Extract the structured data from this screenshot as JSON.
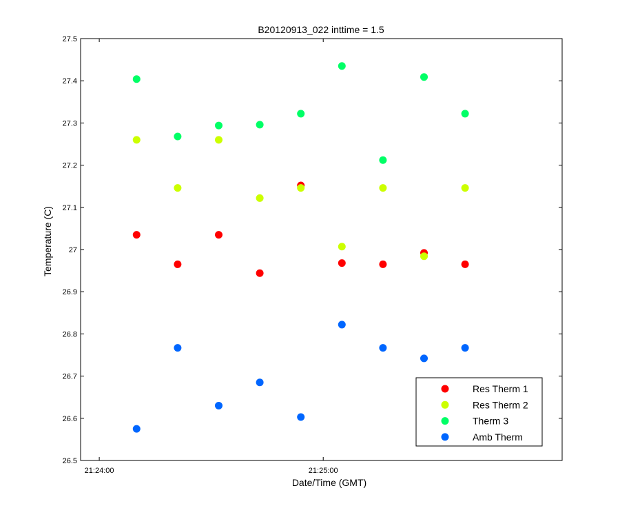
{
  "chart_data": {
    "type": "scatter",
    "title": "B20120913_022 inttime = 1.5",
    "xlabel": "Date/Time (GMT)",
    "ylabel": "Temperature (C)",
    "xlim": [
      "21:23:55",
      "21:26:04"
    ],
    "ylim": [
      26.5,
      27.5
    ],
    "x_ticks": [
      "21:24:00",
      "21:25:00"
    ],
    "y_ticks": [
      "26.5",
      "26.6",
      "26.7",
      "26.8",
      "26.9",
      "27",
      "27.1",
      "27.2",
      "27.3",
      "27.4",
      "27.5"
    ],
    "grid": false,
    "legend_position": "bottom-right",
    "x": [
      "21:24:10",
      "21:24:21",
      "21:24:32",
      "21:24:43",
      "21:24:54",
      "21:25:05",
      "21:25:16",
      "21:25:27",
      "21:25:38"
    ],
    "series": [
      {
        "name": "Res Therm 1",
        "color": "#ff0000",
        "values": [
          27.035,
          26.965,
          27.035,
          26.944,
          27.152,
          26.968,
          26.965,
          26.992,
          26.965
        ]
      },
      {
        "name": "Res Therm 2",
        "color": "#ccff00",
        "values": [
          27.26,
          27.146,
          27.26,
          27.122,
          27.146,
          27.007,
          27.146,
          26.984,
          27.146
        ]
      },
      {
        "name": "Therm 3",
        "color": "#00ff66",
        "values": [
          27.404,
          27.268,
          27.294,
          27.296,
          27.322,
          27.435,
          27.212,
          27.409,
          27.322
        ]
      },
      {
        "name": "Amb Therm",
        "color": "#0066ff",
        "values": [
          26.575,
          26.767,
          26.63,
          26.685,
          26.603,
          26.822,
          26.767,
          26.742,
          26.767
        ]
      }
    ]
  }
}
